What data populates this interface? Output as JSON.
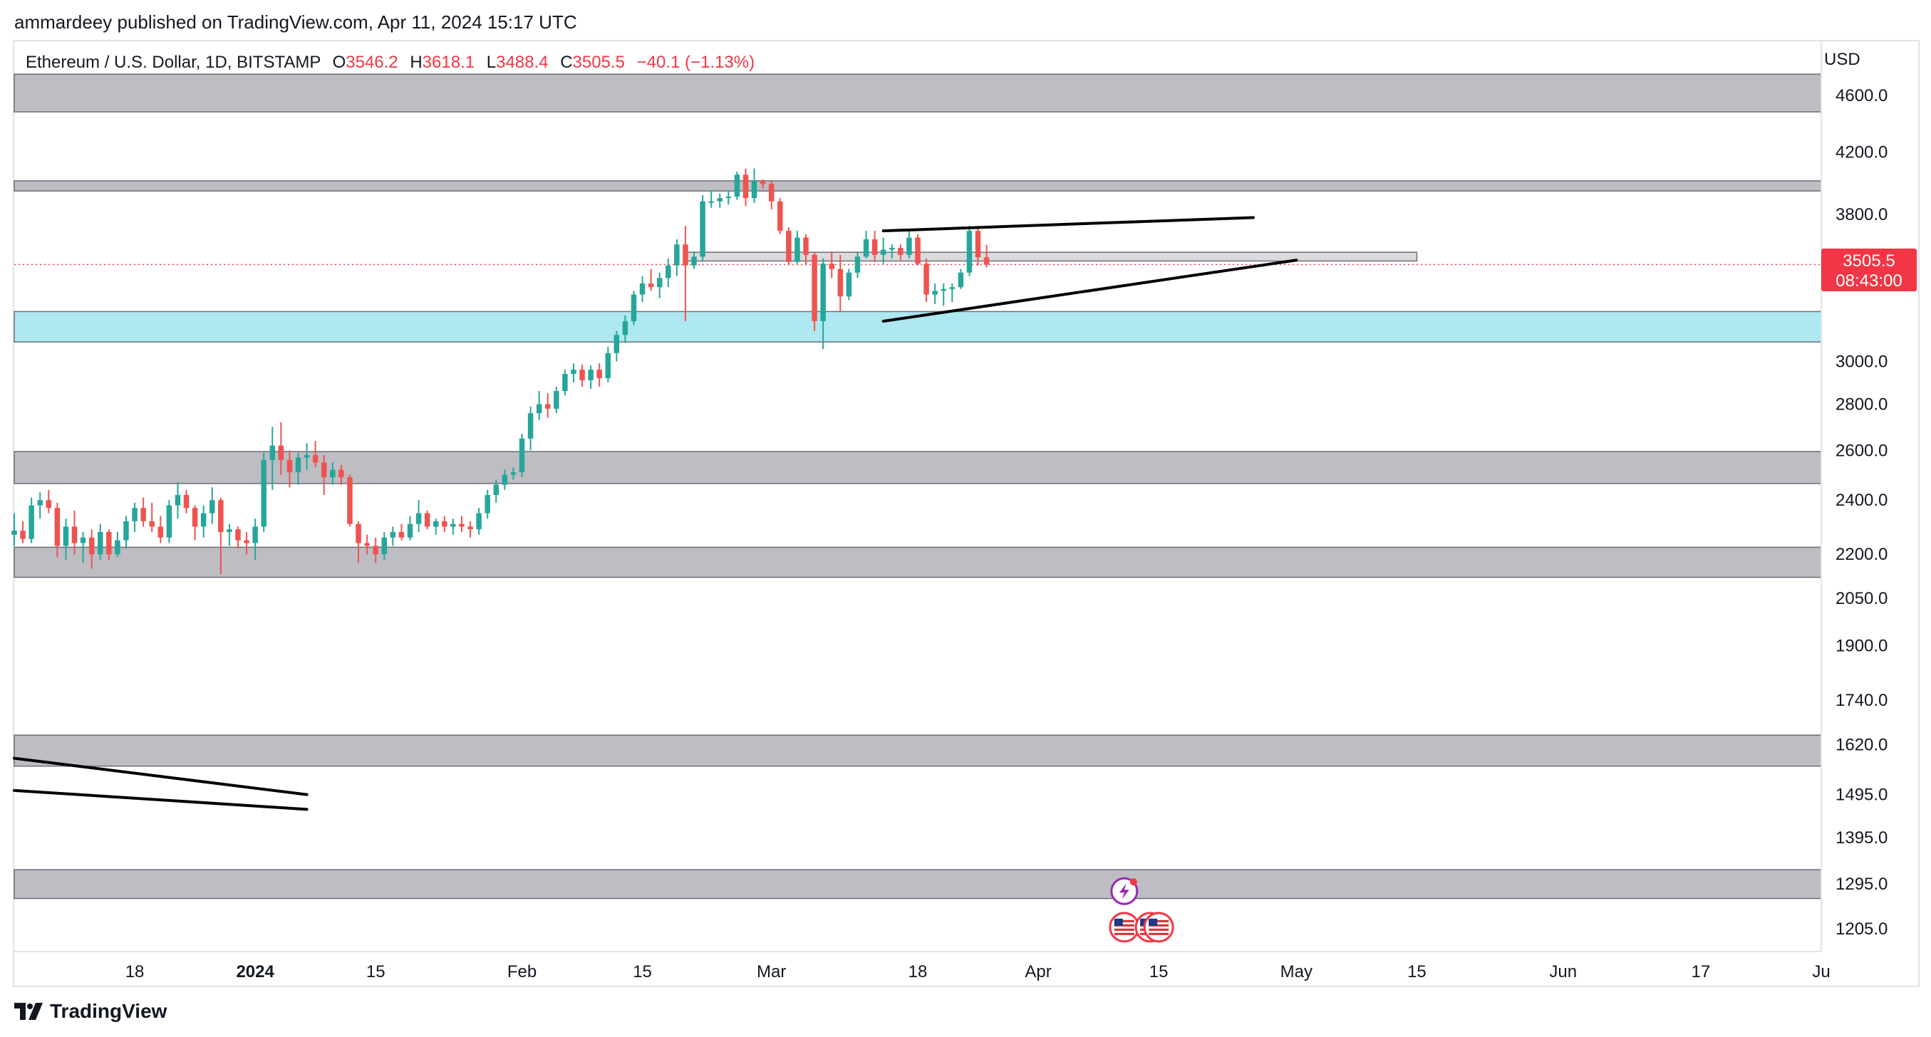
{
  "header": {
    "published_line": "ammardeey published on TradingView.com, Apr 11, 2024 15:17 UTC"
  },
  "legend": {
    "symbol": "Ethereum / U.S. Dollar, 1D, BITSTAMP",
    "open_label": "O",
    "open_value": "3546.2",
    "high_label": "H",
    "high_value": "3618.1",
    "low_label": "L",
    "low_value": "3488.4",
    "close_label": "C",
    "close_value": "3505.5",
    "change": "−40.1 (−1.13%)"
  },
  "price_axis": {
    "currency": "USD"
  },
  "price_badge": {
    "price": "3505.5",
    "countdown": "08:43:00"
  },
  "footer": {
    "brand": "TradingView"
  },
  "colors": {
    "up": "#26a69a",
    "down": "#ef5350",
    "zone_gray": "#bdbdc3",
    "zone_cyan": "#aee8f0",
    "badge": "#f23645"
  },
  "icons": [
    "lightning-event-icon",
    "us-flag-icon"
  ],
  "chart_data": {
    "type": "candlestick",
    "symbol": "Ethereum / U.S. Dollar",
    "interval": "1D",
    "exchange": "BITSTAMP",
    "y_scale": "log",
    "y_ticks": [
      4600.0,
      4200.0,
      3800.0,
      3000.0,
      2800.0,
      2600.0,
      2400.0,
      2200.0,
      2050.0,
      1900.0,
      1740.0,
      1620.0,
      1495.0,
      1395.0,
      1295.0,
      1205.0
    ],
    "y_tick_labels": [
      "4600.0",
      "4200.0",
      "3800.0",
      "3000.0",
      "2800.0",
      "2600.0",
      "2400.0",
      "2200.0",
      "2050.0",
      "1900.0",
      "1740.0",
      "1620.0",
      "1495.0",
      "1395.0",
      "1295.0",
      "1205.0"
    ],
    "x_ticks": [
      {
        "label": "18",
        "day": 0,
        "bold": false
      },
      {
        "label": "2024",
        "day": 14,
        "bold": true
      },
      {
        "label": "15",
        "day": 28,
        "bold": false
      },
      {
        "label": "Feb",
        "day": 45,
        "bold": false
      },
      {
        "label": "15",
        "day": 59,
        "bold": false
      },
      {
        "label": "Mar",
        "day": 74,
        "bold": false
      },
      {
        "label": "18",
        "day": 91,
        "bold": false
      },
      {
        "label": "Apr",
        "day": 105,
        "bold": false
      },
      {
        "label": "15",
        "day": 119,
        "bold": false
      },
      {
        "label": "May",
        "day": 135,
        "bold": false
      },
      {
        "label": "15",
        "day": 149,
        "bold": false
      },
      {
        "label": "Jun",
        "day": 166,
        "bold": false
      },
      {
        "label": "17",
        "day": 182,
        "bold": false
      },
      {
        "label": "Ju",
        "day": 196,
        "bold": false
      }
    ],
    "day_range": [
      -14,
      196
    ],
    "last_price": 3505.5,
    "zones": [
      {
        "low": 4480,
        "high": 4760,
        "color": "gray"
      },
      {
        "low": 3945,
        "high": 4010,
        "color": "gray"
      },
      {
        "low": 3095,
        "high": 3250,
        "color": "cyan"
      },
      {
        "low": 2465,
        "high": 2595,
        "color": "gray"
      },
      {
        "low": 2120,
        "high": 2225,
        "color": "gray"
      },
      {
        "low": 1565,
        "high": 1645,
        "color": "gray"
      },
      {
        "low": 1265,
        "high": 1325,
        "color": "gray"
      },
      {
        "low": 3525,
        "high": 3575,
        "color": "gray",
        "start_day": 64,
        "end_day": 149
      }
    ],
    "trendlines": [
      {
        "start_day": 87,
        "start_price": 3700,
        "end_day": 130,
        "end_price": 3780
      },
      {
        "start_day": 87,
        "start_price": 3200,
        "end_day": 135,
        "end_price": 3530
      },
      {
        "start_day": -14,
        "start_price": 1585,
        "end_day": 20,
        "end_price": 1495
      },
      {
        "start_day": -14,
        "start_price": 1505,
        "end_day": 20,
        "end_price": 1460
      }
    ],
    "event_markers": [
      {
        "type": "lightning",
        "day": 115,
        "price": 1280
      },
      {
        "type": "us-flag",
        "day": 115,
        "price": 1208
      },
      {
        "type": "us-flag",
        "day": 118,
        "price": 1208
      },
      {
        "type": "us-flag",
        "day": 119,
        "price": 1208
      }
    ],
    "candles": [
      [
        -14,
        2270,
        2350,
        2230,
        2285
      ],
      [
        -13,
        2285,
        2320,
        2240,
        2255
      ],
      [
        -12,
        2255,
        2410,
        2240,
        2380
      ],
      [
        -11,
        2380,
        2430,
        2330,
        2400
      ],
      [
        -10,
        2400,
        2440,
        2350,
        2370
      ],
      [
        -9,
        2370,
        2390,
        2190,
        2230
      ],
      [
        -8,
        2230,
        2330,
        2180,
        2300
      ],
      [
        -7,
        2300,
        2360,
        2200,
        2240
      ],
      [
        -6,
        2240,
        2280,
        2170,
        2260
      ],
      [
        -5,
        2260,
        2290,
        2150,
        2200
      ],
      [
        -4,
        2200,
        2310,
        2180,
        2280
      ],
      [
        -3,
        2280,
        2290,
        2180,
        2200
      ],
      [
        -2,
        2200,
        2280,
        2190,
        2250
      ],
      [
        -1,
        2250,
        2340,
        2220,
        2320
      ],
      [
        0,
        2320,
        2390,
        2280,
        2370
      ],
      [
        1,
        2370,
        2410,
        2300,
        2320
      ],
      [
        2,
        2320,
        2390,
        2280,
        2300
      ],
      [
        3,
        2300,
        2340,
        2240,
        2260
      ],
      [
        4,
        2260,
        2400,
        2240,
        2380
      ],
      [
        5,
        2380,
        2470,
        2330,
        2420
      ],
      [
        6,
        2420,
        2440,
        2350,
        2370
      ],
      [
        7,
        2370,
        2380,
        2250,
        2300
      ],
      [
        8,
        2300,
        2380,
        2260,
        2350
      ],
      [
        9,
        2350,
        2450,
        2310,
        2400
      ],
      [
        10,
        2400,
        2410,
        2130,
        2280
      ],
      [
        11,
        2280,
        2310,
        2230,
        2290
      ],
      [
        12,
        2290,
        2300,
        2220,
        2250
      ],
      [
        13,
        2250,
        2280,
        2200,
        2240
      ],
      [
        14,
        2240,
        2330,
        2180,
        2300
      ],
      [
        15,
        2300,
        2590,
        2280,
        2560
      ],
      [
        16,
        2560,
        2700,
        2440,
        2620
      ],
      [
        17,
        2620,
        2720,
        2500,
        2560
      ],
      [
        18,
        2560,
        2600,
        2450,
        2510
      ],
      [
        19,
        2510,
        2590,
        2460,
        2570
      ],
      [
        20,
        2570,
        2630,
        2520,
        2580
      ],
      [
        21,
        2580,
        2640,
        2530,
        2550
      ],
      [
        22,
        2550,
        2580,
        2420,
        2490
      ],
      [
        23,
        2490,
        2550,
        2460,
        2520
      ],
      [
        24,
        2520,
        2540,
        2460,
        2490
      ],
      [
        25,
        2490,
        2500,
        2300,
        2310
      ],
      [
        26,
        2310,
        2320,
        2170,
        2240
      ],
      [
        27,
        2240,
        2270,
        2200,
        2230
      ],
      [
        28,
        2230,
        2260,
        2170,
        2200
      ],
      [
        29,
        2200,
        2280,
        2180,
        2260
      ],
      [
        30,
        2260,
        2300,
        2230,
        2280
      ],
      [
        31,
        2280,
        2310,
        2250,
        2260
      ],
      [
        32,
        2260,
        2340,
        2250,
        2310
      ],
      [
        33,
        2310,
        2400,
        2280,
        2350
      ],
      [
        34,
        2350,
        2360,
        2290,
        2300
      ],
      [
        35,
        2300,
        2330,
        2270,
        2320
      ],
      [
        36,
        2320,
        2340,
        2280,
        2300
      ],
      [
        37,
        2300,
        2330,
        2270,
        2310
      ],
      [
        38,
        2310,
        2340,
        2280,
        2300
      ],
      [
        39,
        2300,
        2320,
        2260,
        2290
      ],
      [
        40,
        2290,
        2370,
        2270,
        2350
      ],
      [
        41,
        2350,
        2440,
        2330,
        2420
      ],
      [
        42,
        2420,
        2480,
        2390,
        2460
      ],
      [
        43,
        2460,
        2520,
        2440,
        2500
      ],
      [
        44,
        2500,
        2530,
        2480,
        2510
      ],
      [
        45,
        2510,
        2670,
        2490,
        2650
      ],
      [
        46,
        2650,
        2790,
        2600,
        2760
      ],
      [
        47,
        2760,
        2860,
        2730,
        2800
      ],
      [
        48,
        2800,
        2850,
        2740,
        2780
      ],
      [
        49,
        2780,
        2880,
        2760,
        2860
      ],
      [
        50,
        2860,
        2960,
        2840,
        2940
      ],
      [
        51,
        2940,
        2990,
        2900,
        2960
      ],
      [
        52,
        2960,
        2985,
        2880,
        2910
      ],
      [
        53,
        2910,
        2980,
        2870,
        2960
      ],
      [
        54,
        2960,
        2990,
        2880,
        2920
      ],
      [
        55,
        2920,
        3070,
        2900,
        3040
      ],
      [
        56,
        3040,
        3150,
        3000,
        3130
      ],
      [
        57,
        3130,
        3230,
        3090,
        3200
      ],
      [
        58,
        3200,
        3360,
        3180,
        3340
      ],
      [
        59,
        3340,
        3440,
        3300,
        3400
      ],
      [
        60,
        3400,
        3480,
        3360,
        3380
      ],
      [
        61,
        3380,
        3460,
        3320,
        3430
      ],
      [
        62,
        3430,
        3540,
        3380,
        3500
      ],
      [
        63,
        3500,
        3650,
        3440,
        3620
      ],
      [
        64,
        3620,
        3730,
        3200,
        3500
      ],
      [
        65,
        3500,
        3580,
        3480,
        3550
      ],
      [
        66,
        3550,
        3920,
        3520,
        3880
      ],
      [
        67,
        3880,
        3950,
        3840,
        3880
      ],
      [
        68,
        3880,
        3930,
        3840,
        3900
      ],
      [
        69,
        3900,
        3950,
        3860,
        3910
      ],
      [
        70,
        3910,
        4070,
        3890,
        4050
      ],
      [
        71,
        4050,
        4090,
        3850,
        3900
      ],
      [
        72,
        3900,
        4090,
        3870,
        4010
      ],
      [
        73,
        4010,
        4020,
        3960,
        3990
      ],
      [
        74,
        3990,
        4010,
        3830,
        3880
      ],
      [
        75,
        3880,
        3900,
        3680,
        3700
      ],
      [
        76,
        3700,
        3720,
        3500,
        3520
      ],
      [
        77,
        3520,
        3700,
        3510,
        3660
      ],
      [
        78,
        3660,
        3680,
        3500,
        3560
      ],
      [
        79,
        3560,
        3580,
        3150,
        3200
      ],
      [
        80,
        3200,
        3540,
        3060,
        3510
      ],
      [
        81,
        3510,
        3580,
        3430,
        3480
      ],
      [
        82,
        3480,
        3560,
        3250,
        3330
      ],
      [
        83,
        3330,
        3480,
        3310,
        3460
      ],
      [
        84,
        3460,
        3580,
        3430,
        3550
      ],
      [
        85,
        3550,
        3700,
        3540,
        3650
      ],
      [
        86,
        3650,
        3700,
        3520,
        3560
      ],
      [
        87,
        3560,
        3660,
        3510,
        3590
      ],
      [
        88,
        3590,
        3620,
        3540,
        3600
      ],
      [
        89,
        3600,
        3620,
        3530,
        3560
      ],
      [
        90,
        3560,
        3700,
        3540,
        3660
      ],
      [
        91,
        3660,
        3680,
        3500,
        3510
      ],
      [
        92,
        3510,
        3540,
        3300,
        3340
      ],
      [
        93,
        3340,
        3400,
        3290,
        3360
      ],
      [
        94,
        3360,
        3400,
        3280,
        3370
      ],
      [
        95,
        3370,
        3400,
        3300,
        3380
      ],
      [
        96,
        3380,
        3480,
        3370,
        3460
      ],
      [
        97,
        3460,
        3730,
        3440,
        3700
      ],
      [
        98,
        3700,
        3720,
        3500,
        3546
      ],
      [
        99,
        3546,
        3618,
        3488,
        3505.5
      ]
    ]
  }
}
